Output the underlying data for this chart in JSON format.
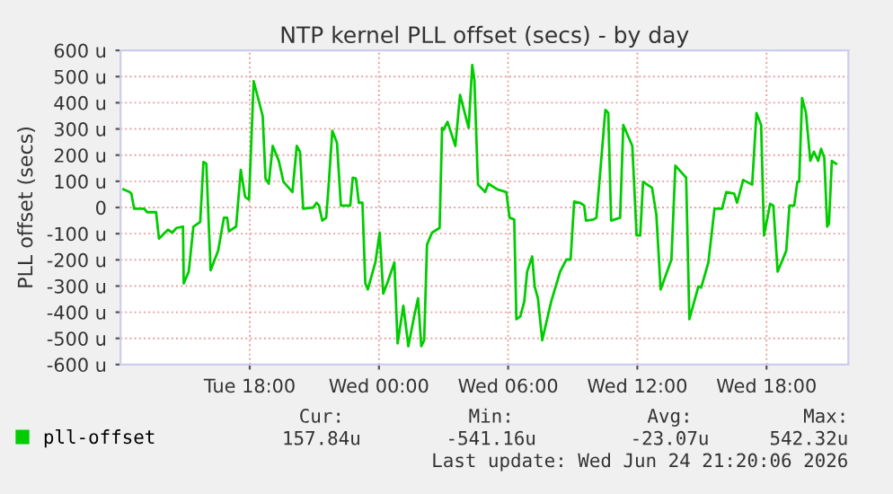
{
  "chart_data": {
    "type": "line",
    "title": "NTP kernel PLL offset (secs) - by day",
    "ylabel": "PLL offset (secs)",
    "xlim": [
      "2026-06-23T12:00",
      "2026-06-24T21:48"
    ],
    "ylim": [
      -600,
      600
    ],
    "xticks": [
      {
        "value": "2026-06-23T18:00",
        "label": "Tue 18:00"
      },
      {
        "value": "2026-06-24T00:00",
        "label": "Wed 00:00"
      },
      {
        "value": "2026-06-24T06:00",
        "label": "Wed 06:00"
      },
      {
        "value": "2026-06-24T12:00",
        "label": "Wed 12:00"
      },
      {
        "value": "2026-06-24T18:00",
        "label": "Wed 18:00"
      }
    ],
    "yticks": [
      {
        "value": -600,
        "label": "-600 u"
      },
      {
        "value": -500,
        "label": "-500 u"
      },
      {
        "value": -400,
        "label": "-400 u"
      },
      {
        "value": -300,
        "label": "-300 u"
      },
      {
        "value": -200,
        "label": "-200 u"
      },
      {
        "value": -100,
        "label": "-100 u"
      },
      0,
      {
        "value": 100,
        "label": "100 u"
      },
      {
        "value": 200,
        "label": "200 u"
      },
      {
        "value": 300,
        "label": "300 u"
      },
      {
        "value": 400,
        "label": "400 u"
      },
      {
        "value": 500,
        "label": "500 u"
      },
      {
        "value": 600,
        "label": "600 u"
      }
    ],
    "grid": true,
    "legend": "bottom left",
    "series": [
      {
        "name": "pll-offset",
        "color": "#00cc00",
        "x": [
          "2026-06-23T12:08",
          "2026-06-23T12:25",
          "2026-06-23T12:30",
          "2026-06-23T12:38",
          "2026-06-23T13:06",
          "2026-06-23T13:14",
          "2026-06-23T13:39",
          "2026-06-23T13:47",
          "2026-06-23T14:12",
          "2026-06-23T14:24",
          "2026-06-23T14:36",
          "2026-06-23T14:54",
          "2026-06-23T14:56",
          "2026-06-23T15:10",
          "2026-06-23T15:23",
          "2026-06-23T15:42",
          "2026-06-23T15:51",
          "2026-06-23T15:59",
          "2026-06-23T16:11",
          "2026-06-23T16:32",
          "2026-06-23T16:48",
          "2026-06-23T16:57",
          "2026-06-23T17:02",
          "2026-06-23T17:22",
          "2026-06-23T17:35",
          "2026-06-23T17:47",
          "2026-06-23T17:58",
          "2026-06-23T18:11",
          "2026-06-23T18:36",
          "2026-06-23T18:44",
          "2026-06-23T18:53",
          "2026-06-23T19:04",
          "2026-06-23T19:21",
          "2026-06-23T19:34",
          "2026-06-23T19:59",
          "2026-06-23T20:11",
          "2026-06-23T20:20",
          "2026-06-23T20:29",
          "2026-06-23T20:57",
          "2026-06-23T21:06",
          "2026-06-23T21:13",
          "2026-06-23T21:22",
          "2026-06-23T21:33",
          "2026-06-23T21:40",
          "2026-06-23T21:50",
          "2026-06-23T22:03",
          "2026-06-23T22:14",
          "2026-06-23T22:40",
          "2026-06-23T22:47",
          "2026-06-23T22:56",
          "2026-06-23T23:04",
          "2026-06-23T23:14",
          "2026-06-23T23:22",
          "2026-06-23T23:29",
          "2026-06-23T23:50",
          "2026-06-24T00:02",
          "2026-06-24T00:12",
          "2026-06-24T00:23",
          "2026-06-24T00:43",
          "2026-06-24T00:52",
          "2026-06-24T01:08",
          "2026-06-24T01:22",
          "2026-06-24T01:38",
          "2026-06-24T01:49",
          "2026-06-24T01:58",
          "2026-06-24T02:06",
          "2026-06-24T02:14",
          "2026-06-24T02:28",
          "2026-06-24T02:49",
          "2026-06-24T02:56",
          "2026-06-24T03:00",
          "2026-06-24T03:11",
          "2026-06-24T03:33",
          "2026-06-24T03:46",
          "2026-06-24T04:10",
          "2026-06-24T04:20",
          "2026-06-24T04:26",
          "2026-06-24T04:36",
          "2026-06-24T04:56",
          "2026-06-24T05:05",
          "2026-06-24T05:30",
          "2026-06-24T05:55",
          "2026-06-24T06:04",
          "2026-06-24T06:17",
          "2026-06-24T06:23",
          "2026-06-24T06:34",
          "2026-06-24T06:45",
          "2026-06-24T06:53",
          "2026-06-24T07:07",
          "2026-06-24T07:14",
          "2026-06-24T07:23",
          "2026-06-24T07:35",
          "2026-06-24T08:00",
          "2026-06-24T08:25",
          "2026-06-24T08:42",
          "2026-06-24T08:54",
          "2026-06-24T09:04",
          "2026-06-24T09:20",
          "2026-06-24T09:32",
          "2026-06-24T09:37",
          "2026-06-24T09:58",
          "2026-06-24T10:06",
          "2026-06-24T10:31",
          "2026-06-24T10:39",
          "2026-06-24T10:47",
          "2026-06-24T11:12",
          "2026-06-24T11:21",
          "2026-06-24T11:46",
          "2026-06-24T11:58",
          "2026-06-24T12:08",
          "2026-06-24T12:16",
          "2026-06-24T12:41",
          "2026-06-24T12:53",
          "2026-06-24T13:05",
          "2026-06-24T13:35",
          "2026-06-24T13:46",
          "2026-06-24T14:16",
          "2026-06-24T14:25",
          "2026-06-24T14:50",
          "2026-06-24T14:58",
          "2026-06-24T15:18",
          "2026-06-24T15:35",
          "2026-06-24T15:56",
          "2026-06-24T16:08",
          "2026-06-24T16:30",
          "2026-06-24T16:38",
          "2026-06-24T16:55",
          "2026-06-24T17:20",
          "2026-06-24T17:32",
          "2026-06-24T17:45",
          "2026-06-24T17:53",
          "2026-06-24T18:10",
          "2026-06-24T18:19",
          "2026-06-24T18:31",
          "2026-06-24T18:55",
          "2026-06-24T19:04",
          "2026-06-24T19:17",
          "2026-06-24T19:26",
          "2026-06-24T19:31",
          "2026-06-24T19:39",
          "2026-06-24T19:50",
          "2026-06-24T20:02",
          "2026-06-24T20:12",
          "2026-06-24T20:24",
          "2026-06-24T20:32",
          "2026-06-24T20:41",
          "2026-06-24T20:49",
          "2026-06-24T20:54",
          "2026-06-24T21:02",
          "2026-06-24T21:14"
        ],
        "values": [
          69,
          59,
          53,
          -5,
          -5,
          -18,
          -18,
          -119,
          -85,
          -96,
          -78,
          -73,
          -290,
          -245,
          -73,
          -55,
          174,
          167,
          -240,
          -165,
          -39,
          -39,
          -91,
          -73,
          144,
          41,
          30,
          482,
          350,
          110,
          91,
          235,
          178,
          98,
          59,
          235,
          213,
          -5,
          0,
          18,
          7,
          -50,
          -39,
          87,
          293,
          247,
          7,
          7,
          114,
          110,
          18,
          18,
          -290,
          -313,
          -210,
          -96,
          -329,
          -290,
          -210,
          -519,
          -375,
          -530,
          -416,
          -347,
          -530,
          -507,
          -142,
          -96,
          -78,
          304,
          297,
          327,
          235,
          430,
          304,
          544,
          487,
          87,
          59,
          91,
          69,
          59,
          -39,
          -46,
          -427,
          -416,
          -359,
          -245,
          -187,
          -302,
          -347,
          -507,
          -359,
          -245,
          -199,
          -199,
          23,
          18,
          7,
          -50,
          -46,
          -39,
          373,
          361,
          -50,
          -39,
          315,
          235,
          -107,
          -107,
          98,
          75,
          -27,
          -313,
          -199,
          160,
          114,
          -427,
          -302,
          -306,
          -210,
          -5,
          -5,
          59,
          53,
          18,
          105,
          87,
          361,
          315,
          -107,
          14,
          7,
          -245,
          -165,
          7,
          7,
          98,
          98,
          418,
          361,
          178,
          213,
          178,
          224,
          190,
          -73,
          -62,
          178,
          167
        ]
      }
    ],
    "annotations": [
      "Cur:",
      "Min:",
      "Avg:",
      "Max:",
      "157.84u",
      "-541.16u",
      "-23.07u",
      "542.32u",
      "Last update: Wed Jun 24 21:20:06 2026"
    ]
  }
}
